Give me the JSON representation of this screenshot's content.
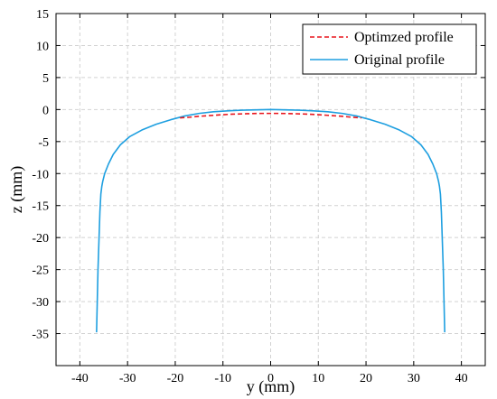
{
  "chart_data": {
    "type": "line",
    "title": "",
    "xlabel": "y (mm)",
    "ylabel": "z (mm)",
    "xlim": [
      -45,
      45
    ],
    "ylim": [
      -40,
      15
    ],
    "xticks": [
      -40,
      -30,
      -20,
      -10,
      0,
      10,
      20,
      30,
      40
    ],
    "yticks": [
      15,
      10,
      5,
      0,
      -5,
      -10,
      -15,
      -20,
      -25,
      -30,
      -35
    ],
    "grid": true,
    "legend_position": "top-right",
    "series": [
      {
        "name": "Optimzed profile",
        "color": "#e8141c",
        "style": "dashed",
        "x": [
          -19,
          -17,
          -15,
          -12,
          -10,
          -8,
          -5,
          -2,
          0,
          2,
          5,
          8,
          10,
          12,
          15,
          17,
          19
        ],
        "y": [
          -1.3,
          -1.2,
          -1.05,
          -0.9,
          -0.8,
          -0.72,
          -0.65,
          -0.6,
          -0.6,
          -0.6,
          -0.65,
          -0.72,
          -0.8,
          -0.9,
          -1.05,
          -1.2,
          -1.3
        ]
      },
      {
        "name": "Original profile",
        "color": "#1e9fe0",
        "style": "solid",
        "x": [
          -36.5,
          -36.2,
          -35.8,
          -35.6,
          -35.4,
          -35.2,
          -34.8,
          -34.0,
          -33.0,
          -31.5,
          -29.5,
          -27.0,
          -24.0,
          -21.0,
          -18.0,
          -15.0,
          -12.0,
          -9.0,
          -6.0,
          -3.0,
          0,
          3,
          6,
          9,
          12,
          15,
          18,
          21,
          24,
          27,
          29.5,
          31.5,
          33.0,
          34.0,
          34.8,
          35.2,
          35.4,
          35.6,
          35.8,
          36.2,
          36.5
        ],
        "y": [
          -34.8,
          -25.0,
          -16.0,
          -13.2,
          -12.0,
          -11.2,
          -10.0,
          -8.5,
          -7.0,
          -5.5,
          -4.2,
          -3.2,
          -2.3,
          -1.6,
          -1.0,
          -0.6,
          -0.35,
          -0.2,
          -0.1,
          -0.05,
          0,
          -0.05,
          -0.1,
          -0.2,
          -0.35,
          -0.6,
          -1.0,
          -1.6,
          -2.3,
          -3.2,
          -4.2,
          -5.5,
          -7.0,
          -8.5,
          -10.0,
          -11.2,
          -12.0,
          -13.2,
          -16.0,
          -25.0,
          -34.8
        ]
      }
    ]
  }
}
